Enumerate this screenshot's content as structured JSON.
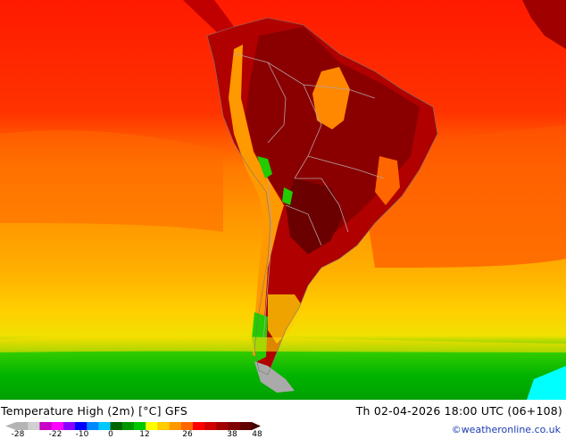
{
  "map": {
    "title": "Temperature High (2m) [°C] GFS",
    "run_label": "Th 02-04-2026 18:00 UTC (06+108)",
    "credit": "©weatheronline.co.uk",
    "region": "South America",
    "colors": {
      "ocean_hot": "#ff0000",
      "warm_orange": "#ff9900",
      "orange": "#ff7700",
      "yellow": "#ffcc00",
      "cool_green": "#00cc00",
      "land_dark": "#a80000",
      "land_darkest": "#7a0000",
      "cold_gray": "#aaaaaa",
      "cyan": "#00ffff"
    }
  },
  "legend": {
    "ticks": [
      "-28",
      "-22",
      "-10",
      "0",
      "12",
      "26",
      "38",
      "48"
    ],
    "colors": [
      "#b4b4b4",
      "#d0d0d0",
      "#c800c8",
      "#ff00ff",
      "#8800ff",
      "#0000ff",
      "#0088ff",
      "#00c8ff",
      "#006400",
      "#009600",
      "#00c800",
      "#ffff00",
      "#ffcc00",
      "#ff9900",
      "#ff6600",
      "#ff0000",
      "#d00000",
      "#a00000",
      "#800000",
      "#600000"
    ]
  }
}
